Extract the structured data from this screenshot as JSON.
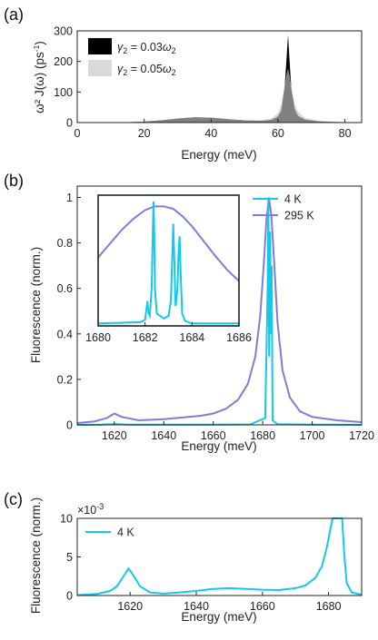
{
  "chart_data": [
    {
      "panel": "(a)",
      "type": "area",
      "xlabel": "Energy (meV)",
      "ylabel": "ω² J(ω) (ps⁻¹)",
      "xlim": [
        0,
        85
      ],
      "ylim": [
        0,
        300
      ],
      "xticks": [
        0,
        20,
        40,
        60,
        80
      ],
      "yticks": [
        0,
        100,
        200,
        300
      ],
      "legend": {
        "placement": "top-left"
      },
      "series": [
        {
          "name": "γ₂ = 0.03ω₂",
          "color": "#000000",
          "x": [
            0,
            10,
            15,
            20,
            25,
            30,
            35,
            40,
            45,
            50,
            55,
            58,
            60,
            61,
            62,
            62.5,
            63,
            63.5,
            64,
            65,
            66,
            68,
            72,
            78,
            85
          ],
          "values": [
            0,
            0.3,
            1.2,
            3,
            7,
            13,
            17,
            16,
            11,
            7,
            6,
            9,
            20,
            40,
            120,
            200,
            288,
            195,
            110,
            45,
            22,
            10,
            4,
            1.5,
            0.5
          ]
        },
        {
          "name": "γ₂ = 0.05ω₂",
          "color": "#d9d9d9",
          "x": [
            0,
            10,
            15,
            20,
            25,
            30,
            35,
            40,
            45,
            50,
            55,
            58,
            60,
            61,
            62,
            62.5,
            63,
            63.5,
            64,
            65,
            66,
            68,
            72,
            78,
            85
          ],
          "values": [
            0,
            0.3,
            1.2,
            3,
            7,
            13,
            17,
            16,
            11,
            7,
            7,
            13,
            32,
            60,
            120,
            155,
            175,
            150,
            112,
            60,
            36,
            16,
            6,
            2,
            0.6
          ]
        }
      ]
    },
    {
      "panel": "(b)",
      "type": "line",
      "xlabel": "Energy (meV)",
      "ylabel": "Fluorescence (norm.)",
      "xlim": [
        1605,
        1720
      ],
      "ylim": [
        0,
        1.05
      ],
      "xticks": [
        1620,
        1640,
        1660,
        1680,
        1700,
        1720
      ],
      "yticks": [
        0,
        0.2,
        0.4,
        0.6,
        0.8,
        1
      ],
      "yticklabels": [
        "0",
        "0.2",
        "0.4",
        "0.6",
        "0.8",
        "1"
      ],
      "legend": {
        "placement": "top-right"
      },
      "series": [
        {
          "name": "4 K",
          "color": "#12c8ec",
          "x": [
            1605,
            1615,
            1620,
            1625,
            1640,
            1660,
            1675,
            1681,
            1682,
            1682.3,
            1682.6,
            1683,
            1683.3,
            1683.6,
            1684,
            1686,
            1700,
            1720
          ],
          "values": [
            0,
            0.001,
            0.0035,
            0.001,
            0.001,
            0.001,
            0.002,
            0.03,
            0.6,
            1.0,
            0.3,
            0.85,
            0.4,
            0.7,
            0.02,
            0.003,
            0.001,
            0
          ]
        },
        {
          "name": "295 K",
          "color": "#7b7fd9",
          "x": [
            1605,
            1612,
            1617,
            1620,
            1623,
            1630,
            1640,
            1650,
            1655,
            1660,
            1665,
            1670,
            1674,
            1677,
            1679,
            1680.5,
            1681.5,
            1682.5,
            1683.5,
            1684.5,
            1686,
            1688,
            1691,
            1695,
            1700,
            1710,
            1720
          ],
          "values": [
            0.008,
            0.015,
            0.03,
            0.05,
            0.035,
            0.02,
            0.025,
            0.035,
            0.04,
            0.05,
            0.07,
            0.11,
            0.18,
            0.3,
            0.48,
            0.72,
            0.9,
            1.0,
            0.92,
            0.74,
            0.45,
            0.24,
            0.12,
            0.06,
            0.035,
            0.02,
            0.012
          ]
        }
      ],
      "inset": {
        "xlim": [
          1680,
          1686
        ],
        "ylim": [
          0,
          1.05
        ],
        "xticks": [
          1680,
          1682,
          1684,
          1686
        ],
        "series": [
          {
            "name": "4 K",
            "color": "#12c8ec",
            "x": [
              1680,
              1681.8,
              1682.0,
              1682.05,
              1682.1,
              1682.15,
              1682.2,
              1682.28,
              1682.33,
              1682.36,
              1682.39,
              1682.42,
              1682.5,
              1682.8,
              1683.0,
              1683.1,
              1683.15,
              1683.2,
              1683.25,
              1683.3,
              1683.38,
              1683.43,
              1683.47,
              1683.52,
              1683.58,
              1683.7,
              1684.0,
              1686
            ],
            "values": [
              0.02,
              0.03,
              0.05,
              0.12,
              0.2,
              0.1,
              0.08,
              0.3,
              0.75,
              1.0,
              0.75,
              0.3,
              0.1,
              0.06,
              0.08,
              0.2,
              0.5,
              0.82,
              0.5,
              0.16,
              0.3,
              0.6,
              0.72,
              0.4,
              0.1,
              0.04,
              0.02,
              0.02
            ]
          },
          {
            "name": "295 K",
            "color": "#7b7fd9",
            "x": [
              1680,
              1680.5,
              1681,
              1681.5,
              1682,
              1682.4,
              1682.8,
              1683.2,
              1683.6,
              1684,
              1684.5,
              1685,
              1685.5,
              1686
            ],
            "values": [
              0.55,
              0.66,
              0.77,
              0.86,
              0.93,
              0.96,
              0.96,
              0.94,
              0.88,
              0.8,
              0.68,
              0.56,
              0.45,
              0.36
            ]
          }
        ]
      }
    },
    {
      "panel": "(c)",
      "type": "line",
      "xlabel": "Energy (meV)",
      "ylabel": "Fluorescence (norm.)",
      "xlim": [
        1604,
        1690
      ],
      "ylim": [
        0,
        10
      ],
      "xticks": [
        1620,
        1640,
        1660,
        1680
      ],
      "yticks": [
        0,
        5,
        10
      ],
      "scale_label": "×10⁻³",
      "legend": {
        "placement": "top-left"
      },
      "series": [
        {
          "name": "4 K",
          "color": "#12c8ec",
          "x": [
            1604,
            1610,
            1614,
            1616,
            1618,
            1619.5,
            1621,
            1623,
            1626,
            1630,
            1635,
            1640,
            1645,
            1650,
            1655,
            1660,
            1665,
            1670,
            1673,
            1676,
            1678,
            1679.5,
            1680.5,
            1681.2,
            1681.8,
            1682.2,
            1683.5,
            1684.1,
            1684.8,
            1685.5,
            1687,
            1690
          ],
          "values": [
            0.05,
            0.2,
            0.6,
            1.2,
            2.5,
            3.5,
            2.6,
            1.2,
            0.4,
            0.25,
            0.4,
            0.6,
            0.85,
            0.95,
            0.85,
            0.75,
            0.7,
            0.95,
            1.3,
            2.3,
            3.8,
            6.3,
            8.5,
            10.0,
            10.0,
            10.0,
            10.0,
            10.0,
            5.0,
            1.6,
            0.4,
            0.1
          ]
        }
      ]
    }
  ],
  "panel_labels": {
    "a": "(a)",
    "b": "(b)",
    "c": "(c)"
  },
  "legend_a": {
    "item1": {
      "sym": "γ",
      "sub": "2",
      "mid": " = 0.03",
      "w": "ω",
      "wsub": "2"
    },
    "item2": {
      "sym": "γ",
      "sub": "2",
      "mid": " = 0.05",
      "w": "ω",
      "wsub": "2"
    }
  },
  "axis_text": {
    "a_xlabel": "Energy (meV)",
    "a_ylabel_main": "ω² J(ω) (ps",
    "a_ylabel_sup": "-1",
    "a_ylabel_close": ")",
    "b_xlabel": "Energy (meV)",
    "b_ylabel": "Fluorescence (norm.)",
    "c_xlabel": "Energy (meV)",
    "c_ylabel": "Fluorescence (norm.)",
    "c_scale_base": "×10",
    "c_scale_exp": "-3"
  }
}
